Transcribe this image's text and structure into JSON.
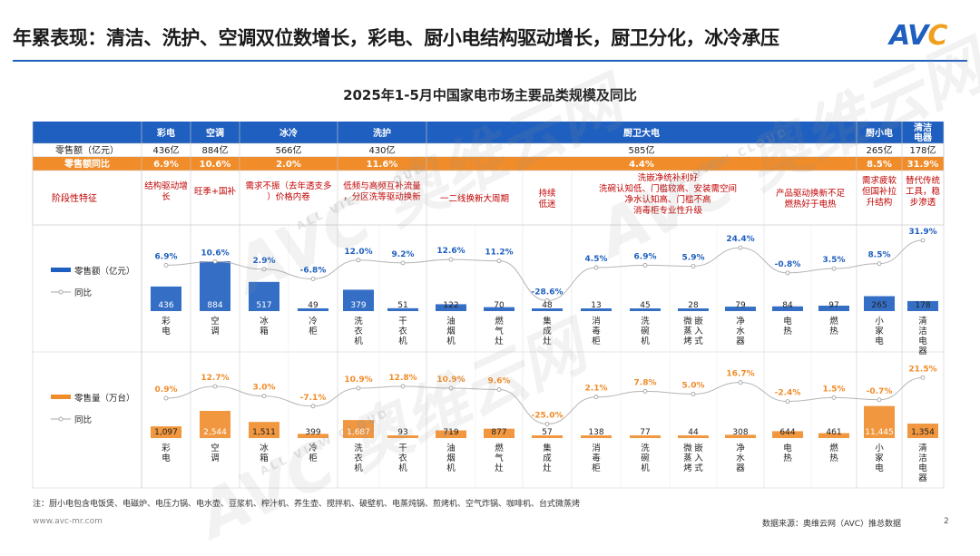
{
  "header": {
    "title": "年累表现：清洁、洗护、空调双位数增长，彩电、厨小电结构驱动增长，厨卫分化，冰冷承压",
    "logo": "AVC"
  },
  "footer": {
    "note": "注：厨小电包含电饭煲、电磁炉、电压力锅、电水壶、豆浆机、榨汁机、养生壶、搅拌机、破壁机、电蒸炖锅、煎烤机、空气炸锅、咖啡机、台式微蒸烤",
    "website": "www.avc-mr.com",
    "source": "数据来源：奥维云网（AVC）推总数据",
    "page": "2"
  },
  "watermark": {
    "text": "AVC 奥维云网",
    "sub": "ALL VIEW CLOUD"
  },
  "colors": {
    "blue": "#1f5fbf",
    "orange": "#f08c2a",
    "header_bg": "#1f5fbf",
    "red_text": "#c00000"
  },
  "chart_data": {
    "type": "table",
    "title": "2025年1-5月中国家电市场主要品类规模及同比",
    "groups": [
      {
        "name": "彩电",
        "retail": "436亿",
        "yoy": "6.9%",
        "feature": "结构驱动增长"
      },
      {
        "name": "空调",
        "retail": "884亿",
        "yoy": "10.6%",
        "feature": "旺季+国补"
      },
      {
        "name": "冰冷",
        "retail": "566亿",
        "yoy": "2.0%",
        "feature": "需求不振（去年透支多）价格内卷"
      },
      {
        "name": "洗护",
        "retail": "430亿",
        "yoy": "11.6%",
        "feature": "低频与高频互补流量，分区洗等驱动换新"
      },
      {
        "name": "厨卫大电",
        "retail": "585亿",
        "yoy": "4.4%",
        "feature": ""
      },
      {
        "name": "厨小电",
        "retail": "265亿",
        "yoy": "8.5%",
        "feature": "需求疲软但国补拉升结构"
      },
      {
        "name": "清洁电器",
        "retail": "178亿",
        "yoy": "31.9%",
        "feature": "替代传统工具，稳步渗透"
      }
    ],
    "row_labels": {
      "retail": "零售额（亿元）",
      "yoy": "零售额同比",
      "feature": "阶段性特征"
    },
    "kitchen_features": {
      "range_gas": "一二线换新大周期",
      "integrated": "持续低迷",
      "dish_line1": "洗嵌净统补利好",
      "dish_line2": "洗碗认知低、门槛较高、安装需空间",
      "dish_line3": "净水认知高、门槛不高",
      "dish_line4": "消毒柜专业性升级",
      "heater": "产品驱动换新不足燃热好于电热"
    },
    "categories": [
      "彩电",
      "空调",
      "冰箱",
      "冷柜",
      "洗衣机",
      "干衣机",
      "油烟机",
      "燃气灶",
      "集成灶",
      "消毒柜",
      "洗碗机",
      "微蒸烤嵌入式",
      "净水器",
      "电热",
      "燃热",
      "小家电",
      "清洁电器"
    ],
    "amount": {
      "legend_bar": "零售额（亿元）",
      "legend_line": "同比",
      "values": [
        436,
        884,
        517,
        49,
        379,
        51,
        122,
        70,
        48,
        13,
        45,
        28,
        79,
        84,
        97,
        265,
        178
      ],
      "yoy": [
        6.9,
        10.6,
        2.9,
        -6.8,
        12.0,
        9.2,
        12.6,
        11.2,
        -28.6,
        4.5,
        6.9,
        5.9,
        24.4,
        -0.8,
        3.5,
        8.5,
        31.9
      ],
      "yoy_labels": [
        "6.9%",
        "10.6%",
        "2.9%",
        "-6.8%",
        "12.0%",
        "9.2%",
        "12.6%",
        "11.2%",
        "-28.6%",
        "4.5%",
        "6.9%",
        "5.9%",
        "24.4%",
        "-0.8%",
        "3.5%",
        "8.5%",
        "31.9%"
      ],
      "value_labels": [
        "436",
        "884",
        "517",
        "49",
        "379",
        "51",
        "122",
        "70",
        "48",
        "13",
        "45",
        "28",
        "79",
        "84",
        "97",
        "265",
        "178"
      ]
    },
    "volume": {
      "legend_bar": "零售量（万台）",
      "legend_line": "同比",
      "values": [
        1097,
        2544,
        1511,
        399,
        1687,
        93,
        719,
        877,
        57,
        138,
        77,
        44,
        308,
        644,
        461,
        11445,
        1354
      ],
      "yoy": [
        0.9,
        12.7,
        3.0,
        -7.1,
        10.9,
        12.8,
        10.9,
        9.6,
        -25.0,
        2.1,
        7.8,
        5.0,
        16.7,
        -2.4,
        1.5,
        -0.7,
        21.5
      ],
      "yoy_labels": [
        "0.9%",
        "12.7%",
        "3.0%",
        "-7.1%",
        "10.9%",
        "12.8%",
        "10.9%",
        "9.6%",
        "-25.0%",
        "2.1%",
        "7.8%",
        "5.0%",
        "16.7%",
        "-2.4%",
        "1.5%",
        "-0.7%",
        "21.5%"
      ],
      "value_labels": [
        "1,097",
        "2,544",
        "1,511",
        "399",
        "1,687",
        "93",
        "719",
        "877",
        "57",
        "138",
        "77",
        "44",
        "308",
        "644",
        "461",
        "11,445",
        "1,354"
      ]
    }
  }
}
